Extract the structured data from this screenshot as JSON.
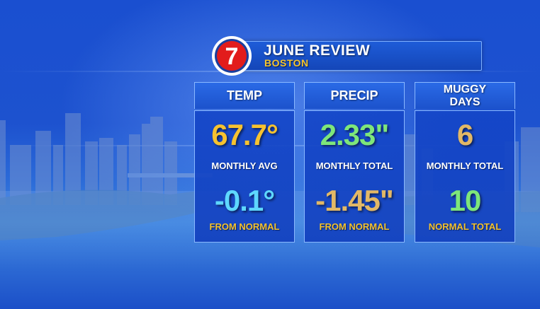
{
  "header": {
    "title": "JUNE REVIEW",
    "subtitle": "BOSTON",
    "logo_text": "7"
  },
  "columns": [
    {
      "heading": "TEMP",
      "top_value": "67.7°",
      "top_color": "#f6c230",
      "top_label": "MONTHLY AVG",
      "bottom_value": "-0.1°",
      "bottom_color": "#5ed8ff",
      "bottom_label": "FROM NORMAL"
    },
    {
      "heading": "PRECIP",
      "top_value": "2.33\"",
      "top_color": "#7ee67a",
      "top_label": "MONTHLY TOTAL",
      "bottom_value": "-1.45\"",
      "bottom_color": "#e2b866",
      "bottom_label": "FROM NORMAL"
    },
    {
      "heading_line1": "MUGGY",
      "heading_line2": "DAYS",
      "top_value": "6",
      "top_color": "#e2b866",
      "top_label": "MONTHLY TOTAL",
      "bottom_value": "10",
      "bottom_color": "#7ee67a",
      "bottom_label": "NORMAL TOTAL"
    }
  ]
}
